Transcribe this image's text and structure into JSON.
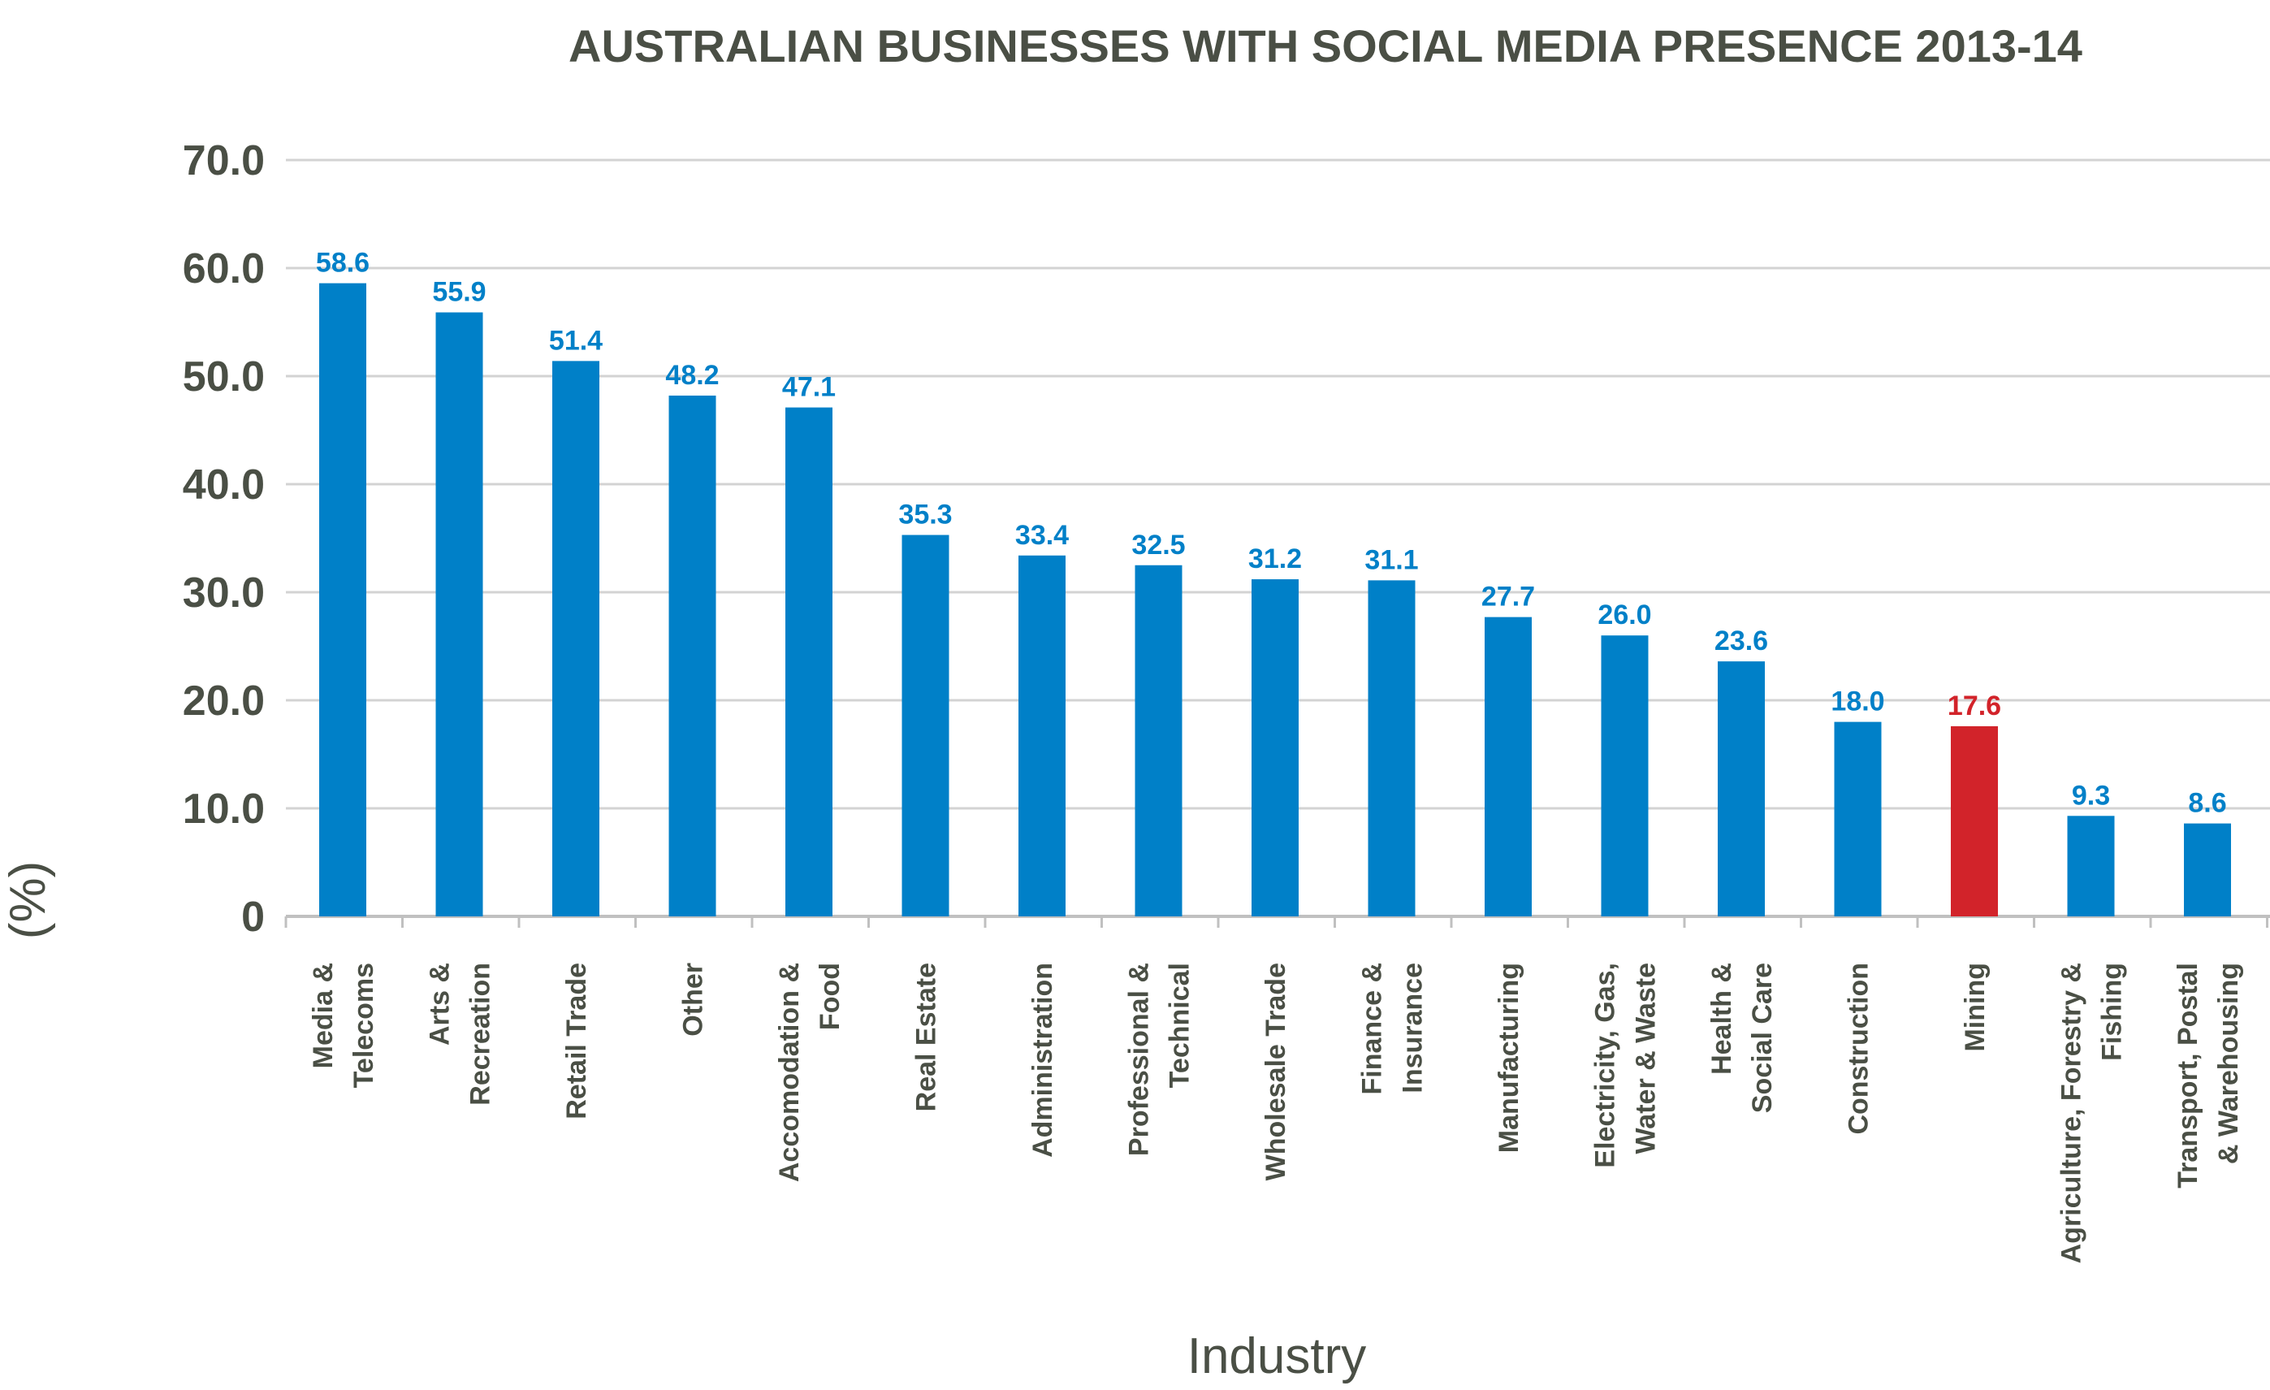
{
  "chart_data": {
    "type": "bar",
    "title": "AUSTRALIAN BUSINESSES WITH SOCIAL MEDIA PRESENCE 2013-14",
    "xlabel": "Industry",
    "ylabel": "(%)",
    "ylim": [
      0,
      70
    ],
    "yticks": [
      "0",
      "10.0",
      "20.0",
      "30.0",
      "40.0",
      "50.0",
      "60.0",
      "70.0"
    ],
    "grid": true,
    "legend": "none",
    "bar_color": "#0080c8",
    "highlight_color": "#d2232a",
    "label_color": "#0080c8",
    "highlight_label_color": "#d2232a",
    "categories": [
      [
        "Media &",
        "Telecoms"
      ],
      [
        "Arts &",
        "Recreation"
      ],
      [
        "Retail Trade"
      ],
      [
        "Other"
      ],
      [
        "Accomodation &",
        "Food"
      ],
      [
        "Real Estate"
      ],
      [
        "Administration"
      ],
      [
        "Professional &",
        "Technical"
      ],
      [
        "Wholesale Trade"
      ],
      [
        "Finance &",
        "Insurance"
      ],
      [
        "Manufacturing"
      ],
      [
        "Electricity, Gas,",
        "Water & Waste"
      ],
      [
        "Health &",
        "Social Care"
      ],
      [
        "Construction"
      ],
      [
        "Mining"
      ],
      [
        "Agriculture, Forestry &",
        "Fishing"
      ],
      [
        "Transport, Postal",
        "& Warehousing"
      ]
    ],
    "values": [
      58.6,
      55.9,
      51.4,
      48.2,
      47.1,
      35.3,
      33.4,
      32.5,
      31.2,
      31.1,
      27.7,
      26.0,
      23.6,
      18.0,
      17.6,
      9.3,
      8.6
    ],
    "value_labels": [
      "58.6",
      "55.9",
      "51.4",
      "48.2",
      "47.1",
      "35.3",
      "33.4",
      "32.5",
      "31.2",
      "31.1",
      "27.7",
      "26.0",
      "23.6",
      "18.0",
      "17.6",
      "9.3",
      "8.6"
    ],
    "highlight": [
      "Mining"
    ]
  }
}
